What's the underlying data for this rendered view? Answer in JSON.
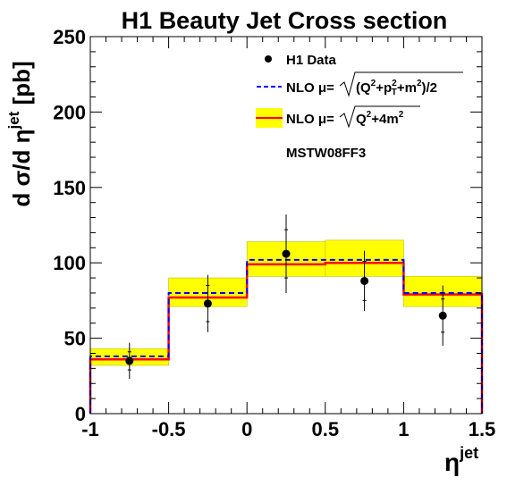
{
  "chart_data": {
    "type": "line",
    "title": "H1 Beauty Jet Cross section",
    "xlabel": {
      "base": "η",
      "sup": "jet"
    },
    "ylabel": {
      "main": "d σ/d η",
      "sup": "jet",
      "unit": "[pb]"
    },
    "xlim": [
      -1,
      1.5
    ],
    "ylim": [
      0,
      250
    ],
    "x_ticks": [
      "-1",
      "-0.5",
      "0",
      "0.5",
      "1",
      "1.5"
    ],
    "y_ticks": [
      "0",
      "50",
      "100",
      "150",
      "200",
      "250"
    ],
    "bins": [
      [
        -1,
        -0.5
      ],
      [
        -0.5,
        0
      ],
      [
        0,
        0.5
      ],
      [
        0.5,
        1
      ],
      [
        1,
        1.5
      ]
    ],
    "series": [
      {
        "name": "H1 Data",
        "style": "points",
        "color": "#000000",
        "x": [
          -0.75,
          -0.25,
          0.25,
          0.75,
          1.25
        ],
        "y": [
          35,
          73,
          106,
          88,
          65
        ],
        "err_stat": [
          6,
          12,
          16,
          13,
          11
        ],
        "err_tot": [
          12,
          19,
          26,
          20,
          20
        ]
      },
      {
        "name": "NLO μ=√((Q²+p_T²+m²)/2)",
        "style": "dashed-histogram",
        "color": "#0000ff",
        "values": [
          38,
          80,
          102,
          102,
          80
        ]
      },
      {
        "name": "NLO μ=√(Q²+4m²)",
        "style": "solid-histogram-band",
        "color": "#ff0000",
        "band_color": "#ffff00",
        "values": [
          36,
          77,
          99,
          100,
          79
        ],
        "band_low": [
          32,
          71,
          91,
          91,
          71
        ],
        "band_high": [
          43,
          90,
          114,
          115,
          91
        ]
      }
    ],
    "annotation": "MSTW08FF3",
    "grid": false,
    "legend_position": "top-right"
  }
}
